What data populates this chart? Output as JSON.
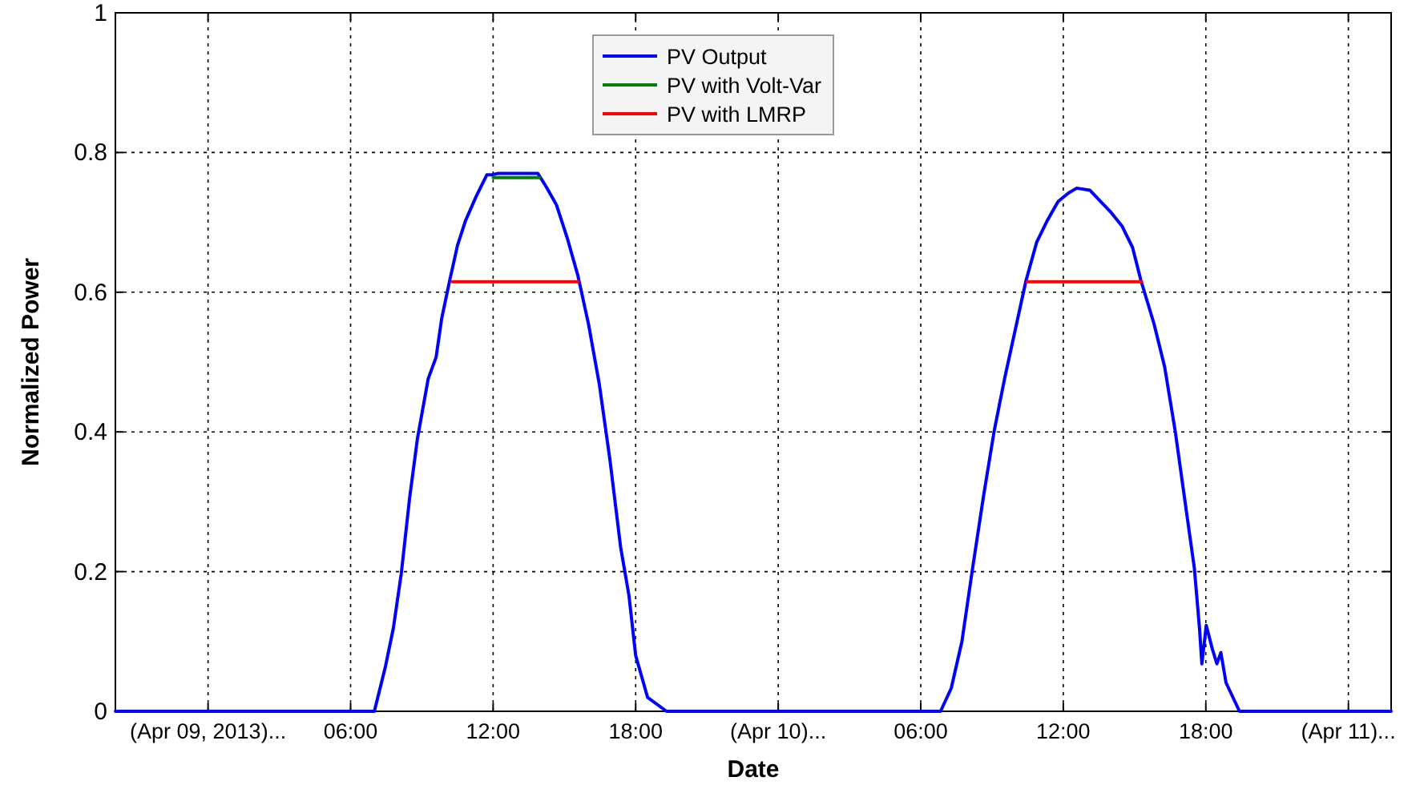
{
  "chart_data": {
    "type": "line",
    "xlabel": "Date",
    "ylabel": "Normalized Power",
    "xlim": [
      "2013-04-08T20:06",
      "2013-04-11T01:48"
    ],
    "ylim": [
      0,
      1
    ],
    "xticks": [
      {
        "value": "2013-04-09T00:00",
        "label": "(Apr 09, 2013)..."
      },
      {
        "value": "2013-04-09T06:00",
        "label": "06:00"
      },
      {
        "value": "2013-04-09T12:00",
        "label": "12:00"
      },
      {
        "value": "2013-04-09T18:00",
        "label": "18:00"
      },
      {
        "value": "2013-04-10T00:00",
        "label": "(Apr 10)..."
      },
      {
        "value": "2013-04-10T06:00",
        "label": "06:00"
      },
      {
        "value": "2013-04-10T12:00",
        "label": "12:00"
      },
      {
        "value": "2013-04-10T18:00",
        "label": "18:00"
      },
      {
        "value": "2013-04-11T00:00",
        "label": "(Apr 11)..."
      }
    ],
    "yticks": [
      0,
      0.2,
      0.4,
      0.6,
      0.8,
      1
    ],
    "grid": true,
    "legend": "top",
    "line_style": "solid",
    "marker": "none",
    "series": [
      {
        "name": "PV Output",
        "color": "#0000ff",
        "x": [
          "2013-04-08T20:06",
          "2013-04-09T07:00",
          "2013-04-09T07:28",
          "2013-04-09T07:48",
          "2013-04-09T08:08",
          "2013-04-09T08:29",
          "2013-04-09T08:49",
          "2013-04-09T09:16",
          "2013-04-09T09:36",
          "2013-04-09T09:50",
          "2013-04-09T10:10",
          "2013-04-09T10:30",
          "2013-04-09T10:50",
          "2013-04-09T11:17",
          "2013-04-09T11:44",
          "2013-04-09T11:58",
          "2013-04-09T12:11",
          "2013-04-09T13:53",
          "2013-04-09T14:13",
          "2013-04-09T14:40",
          "2013-04-09T15:07",
          "2013-04-09T15:34",
          "2013-04-09T16:01",
          "2013-04-09T16:28",
          "2013-04-09T16:55",
          "2013-04-09T17:22",
          "2013-04-09T17:43",
          "2013-04-09T18:00",
          "2013-04-09T18:30",
          "2013-04-09T19:18",
          "2013-04-10T06:50",
          "2013-04-10T07:17",
          "2013-04-10T07:44",
          "2013-04-10T08:11",
          "2013-04-10T08:38",
          "2013-04-10T09:05",
          "2013-04-10T09:32",
          "2013-04-10T09:59",
          "2013-04-10T10:26",
          "2013-04-10T10:53",
          "2013-04-10T11:20",
          "2013-04-10T11:47",
          "2013-04-10T12:13",
          "2013-04-10T12:34",
          "2013-04-10T13:07",
          "2013-04-10T13:34",
          "2013-04-10T14:01",
          "2013-04-10T14:28",
          "2013-04-10T14:55",
          "2013-04-10T15:16",
          "2013-04-10T15:49",
          "2013-04-10T16:16",
          "2013-04-10T16:43",
          "2013-04-10T17:10",
          "2013-04-10T17:31",
          "2013-04-10T17:44",
          "2013-04-10T17:50",
          "2013-04-10T18:01",
          "2013-04-10T18:17",
          "2013-04-10T18:28",
          "2013-04-10T18:38",
          "2013-04-10T18:51",
          "2013-04-10T19:25",
          "2013-04-11T01:48"
        ],
        "values": [
          0,
          0,
          0.064,
          0.119,
          0.197,
          0.305,
          0.391,
          0.476,
          0.507,
          0.562,
          0.616,
          0.667,
          0.702,
          0.737,
          0.768,
          0.768,
          0.77,
          0.77,
          0.752,
          0.725,
          0.678,
          0.624,
          0.554,
          0.469,
          0.36,
          0.235,
          0.166,
          0.08,
          0.02,
          0,
          0,
          0.033,
          0.1,
          0.205,
          0.306,
          0.4,
          0.477,
          0.547,
          0.617,
          0.672,
          0.703,
          0.73,
          0.742,
          0.749,
          0.746,
          0.73,
          0.714,
          0.695,
          0.664,
          0.617,
          0.555,
          0.493,
          0.4,
          0.29,
          0.205,
          0.119,
          0.068,
          0.123,
          0.088,
          0.068,
          0.084,
          0.041,
          0,
          0
        ]
      },
      {
        "name": "PV with Volt-Var",
        "color": "#008000",
        "x": [
          "2013-04-09T12:00",
          "2013-04-09T13:57"
        ],
        "values": [
          0.764,
          0.764
        ]
      },
      {
        "name": "PV with LMRP",
        "color": "#ff0000",
        "x": [
          "2013-04-09T10:17",
          "2013-04-09T15:34",
          null,
          "2013-04-10T10:29",
          "2013-04-10T15:18"
        ],
        "values": [
          0.615,
          0.615,
          null,
          0.615,
          0.615
        ]
      }
    ]
  }
}
